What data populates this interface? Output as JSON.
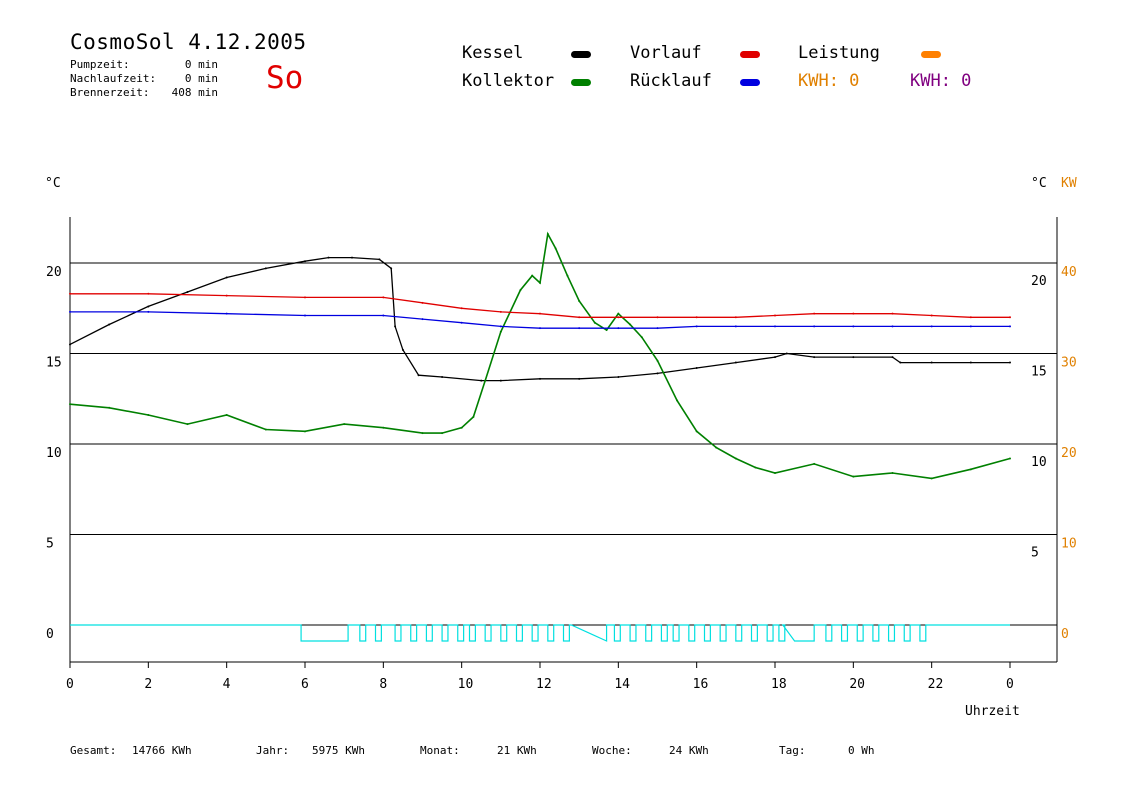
{
  "header": {
    "title": "CosmoSol 4.12.2005",
    "day": "So",
    "stats": [
      {
        "label": "Pumpzeit:",
        "value": "0 min"
      },
      {
        "label": "Nachlaufzeit:",
        "value": "0 min"
      },
      {
        "label": "Brennerzeit:",
        "value": "408 min"
      }
    ]
  },
  "legend": {
    "kessel": "Kessel",
    "kollektor": "Kollektor",
    "vorlauf": "Vorlauf",
    "ruecklauf": "Rücklauf",
    "leistung": "Leistung",
    "kwh1": "KWH: 0",
    "kwh2": "KWH: 0"
  },
  "colors": {
    "kessel": "#000000",
    "kollektor": "#008000",
    "vorlauf": "#e00000",
    "ruecklauf": "#0000e0",
    "leistung": "#ff8000",
    "kwh2": "#800080",
    "pump": "#00e0e0",
    "accent_orange": "#e08000"
  },
  "footer": {
    "gesamt_label": "Gesamt:",
    "gesamt_value": "14766 KWh",
    "jahr_label": "Jahr:",
    "jahr_value": "5975 KWh",
    "monat_label": "Monat:",
    "monat_value": "21 KWh",
    "woche_label": "Woche:",
    "woche_value": "24 KWh",
    "tag_label": "Tag:",
    "tag_value": "0 Wh"
  },
  "chart_data": {
    "type": "line",
    "xlabel": "Uhrzeit",
    "ylabel_left": "°C",
    "ylabel_right": "°C",
    "ylabel_right2": "KW",
    "x_ticks": [
      "0",
      "2",
      "4",
      "6",
      "8",
      "10",
      "12",
      "14",
      "16",
      "18",
      "20",
      "22",
      "0"
    ],
    "y_left_ticks": [
      "0",
      "5",
      "10",
      "15",
      "20"
    ],
    "y_right_ticks": [
      "5",
      "10",
      "15",
      "20"
    ],
    "y_kw_ticks": [
      "0",
      "10",
      "20",
      "30",
      "40"
    ],
    "xlim": [
      0,
      24
    ],
    "ylim": [
      -2,
      22
    ],
    "grid": "horizontal",
    "series": [
      {
        "name": "Kessel",
        "x": [
          0,
          1,
          2,
          3,
          4,
          5,
          6,
          6.6,
          7.2,
          7.9,
          8.2,
          8.3,
          8.5,
          8.9,
          9.5,
          10.5,
          11,
          12,
          13,
          14,
          15,
          16,
          17,
          18,
          18.3,
          19,
          20,
          21,
          21.2,
          22,
          23,
          24
        ],
        "y": [
          15.5,
          16.6,
          17.6,
          18.4,
          19.2,
          19.7,
          20.1,
          20.3,
          20.3,
          20.2,
          19.7,
          16.5,
          15.2,
          13.8,
          13.7,
          13.5,
          13.5,
          13.6,
          13.6,
          13.7,
          13.9,
          14.2,
          14.5,
          14.8,
          15.0,
          14.8,
          14.8,
          14.8,
          14.5,
          14.5,
          14.5,
          14.5
        ]
      },
      {
        "name": "Kollektor",
        "x": [
          0,
          1,
          2,
          3,
          4,
          5,
          6,
          7,
          8,
          9,
          9.5,
          10,
          10.3,
          10.6,
          11,
          11.5,
          11.8,
          12,
          12.2,
          12.4,
          12.7,
          13,
          13.4,
          13.7,
          14,
          14.3,
          14.6,
          15,
          15.5,
          16,
          16.5,
          17,
          17.5,
          18,
          19,
          20,
          21,
          22,
          23,
          24
        ],
        "y": [
          12.2,
          12.0,
          11.6,
          11.1,
          11.6,
          10.8,
          10.7,
          11.1,
          10.9,
          10.6,
          10.6,
          10.9,
          11.5,
          13.5,
          16.2,
          18.5,
          19.3,
          18.9,
          21.6,
          20.8,
          19.3,
          17.9,
          16.7,
          16.3,
          17.2,
          16.6,
          15.9,
          14.6,
          12.4,
          10.7,
          9.8,
          9.2,
          8.7,
          8.4,
          8.9,
          8.2,
          8.4,
          8.1,
          8.6,
          9.2
        ]
      },
      {
        "name": "Vorlauf",
        "x": [
          0,
          2,
          4,
          6,
          8,
          9,
          10,
          11,
          12,
          13,
          14,
          15,
          16,
          17,
          18,
          19,
          20,
          21,
          22,
          23,
          24
        ],
        "y": [
          18.3,
          18.3,
          18.2,
          18.1,
          18.1,
          17.8,
          17.5,
          17.3,
          17.2,
          17.0,
          17.0,
          17.0,
          17.0,
          17.0,
          17.1,
          17.2,
          17.2,
          17.2,
          17.1,
          17.0,
          17.0
        ]
      },
      {
        "name": "Rücklauf",
        "x": [
          0,
          2,
          4,
          6,
          8,
          9,
          10,
          11,
          12,
          13,
          14,
          15,
          16,
          17,
          18,
          19,
          20,
          21,
          22,
          23,
          24
        ],
        "y": [
          17.3,
          17.3,
          17.2,
          17.1,
          17.1,
          16.9,
          16.7,
          16.5,
          16.4,
          16.4,
          16.4,
          16.4,
          16.5,
          16.5,
          16.5,
          16.5,
          16.5,
          16.5,
          16.5,
          16.5,
          16.5
        ]
      }
    ]
  }
}
